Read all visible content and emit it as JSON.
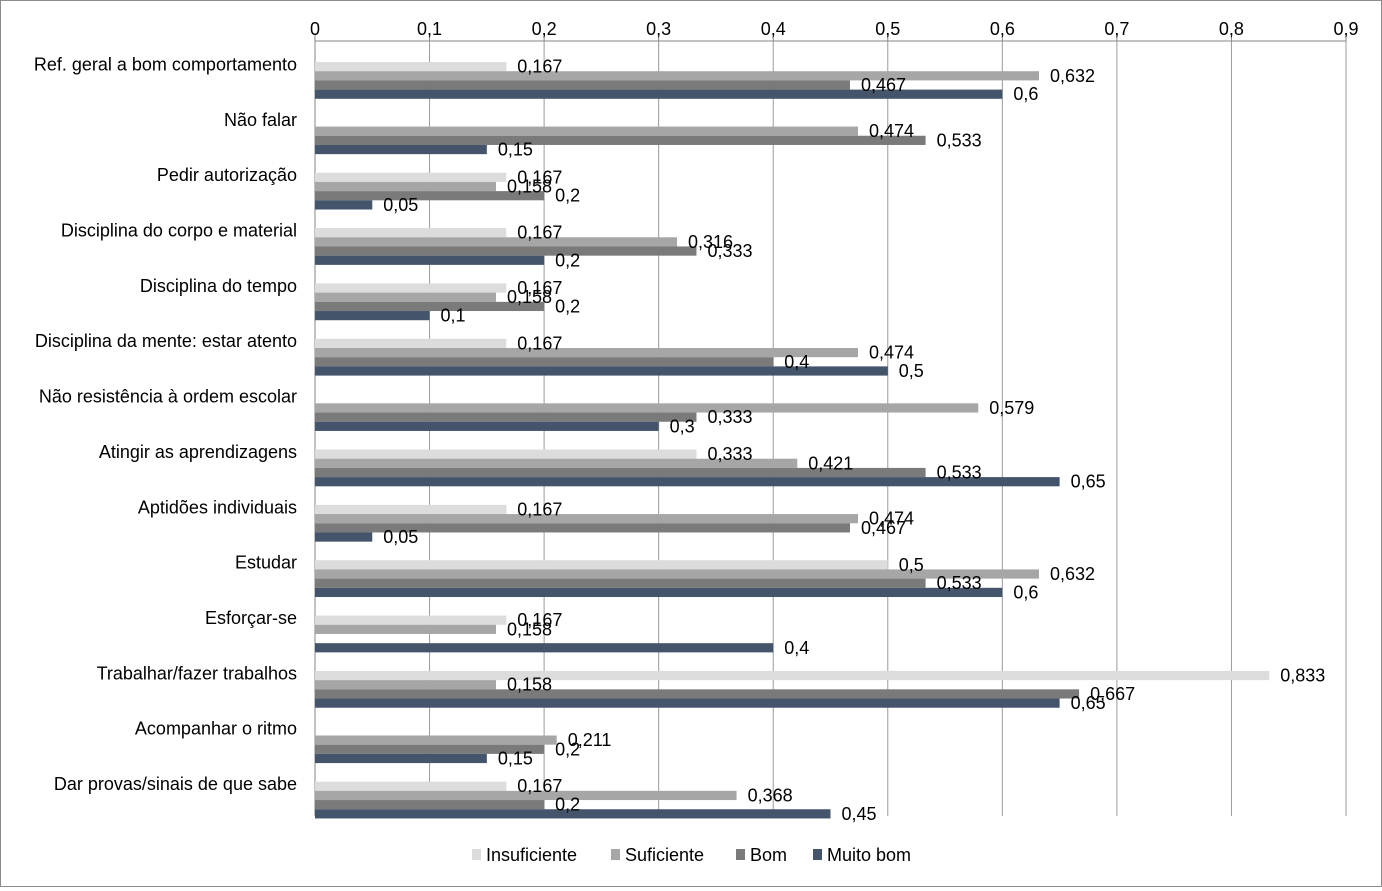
{
  "chart_data": {
    "type": "bar",
    "orientation": "horizontal",
    "title": "",
    "xlabel": "",
    "ylabel": "",
    "xlim": [
      0,
      0.9
    ],
    "x_ticks": [
      "0",
      "0,1",
      "0,2",
      "0,3",
      "0,4",
      "0,5",
      "0,6",
      "0,7",
      "0,8",
      "0,9"
    ],
    "x_axis_position": "top",
    "grid": "vertical",
    "legend_position": "bottom",
    "decimal_separator": ",",
    "categories": [
      "Ref. geral a bom comportamento",
      "Não falar",
      "Pedir autorização",
      "Disciplina do corpo e material",
      "Disciplina do tempo",
      "Disciplina da mente: estar atento",
      "Não resistência à ordem escolar",
      "Atingir as aprendizagens",
      "Aptidões individuais",
      "Estudar",
      "Esforçar-se",
      "Trabalhar/fazer trabalhos",
      "Acompanhar o ritmo",
      "Dar provas/sinais de que sabe"
    ],
    "series": [
      {
        "name": "Insuficiente",
        "color": "#dcdcdc",
        "values": [
          0.167,
          null,
          0.167,
          0.167,
          0.167,
          0.167,
          null,
          0.333,
          0.167,
          0.5,
          0.167,
          0.833,
          null,
          0.167
        ],
        "labels": [
          "0,167",
          "",
          "0,167",
          "0,167",
          "0,167",
          "0,167",
          "",
          "0,333",
          "0,167",
          "0,5",
          "0,167",
          "0,833",
          "",
          "0,167"
        ]
      },
      {
        "name": "Suficiente",
        "color": "#a6a6a6",
        "values": [
          0.632,
          0.474,
          0.158,
          0.316,
          0.158,
          0.474,
          0.579,
          0.421,
          0.474,
          0.632,
          0.158,
          0.158,
          0.211,
          0.368
        ],
        "labels": [
          "0,632",
          "0,474",
          "0,158",
          "0,316",
          "0,158",
          "0,474",
          "0,579",
          "0,421",
          "0,474",
          "0,632",
          "0,158",
          "0,158",
          "0,211",
          "0,368"
        ]
      },
      {
        "name": "Bom",
        "color": "#7a7a7a",
        "values": [
          0.467,
          0.533,
          0.2,
          0.333,
          0.2,
          0.4,
          0.333,
          0.533,
          0.467,
          0.533,
          null,
          0.667,
          0.2,
          0.2
        ],
        "labels": [
          "0,467",
          "0,533",
          "0,2",
          "0,333",
          "0,2",
          "0,4",
          "0,333",
          "0,533",
          "0,467",
          "0,533",
          "",
          "0,667",
          "0,2",
          "0,2"
        ]
      },
      {
        "name": "Muito bom",
        "color": "#44546a",
        "values": [
          0.6,
          0.15,
          0.05,
          0.2,
          0.1,
          0.5,
          0.3,
          0.65,
          0.05,
          0.6,
          0.4,
          0.65,
          0.15,
          0.45
        ],
        "labels": [
          "0,6",
          "0,15",
          "0,05",
          "0,2",
          "0,1",
          "0,5",
          "0,3",
          "0,65",
          "0,05",
          "0,6",
          "0,4",
          "0,65",
          "0,15",
          "0,45"
        ]
      }
    ]
  }
}
